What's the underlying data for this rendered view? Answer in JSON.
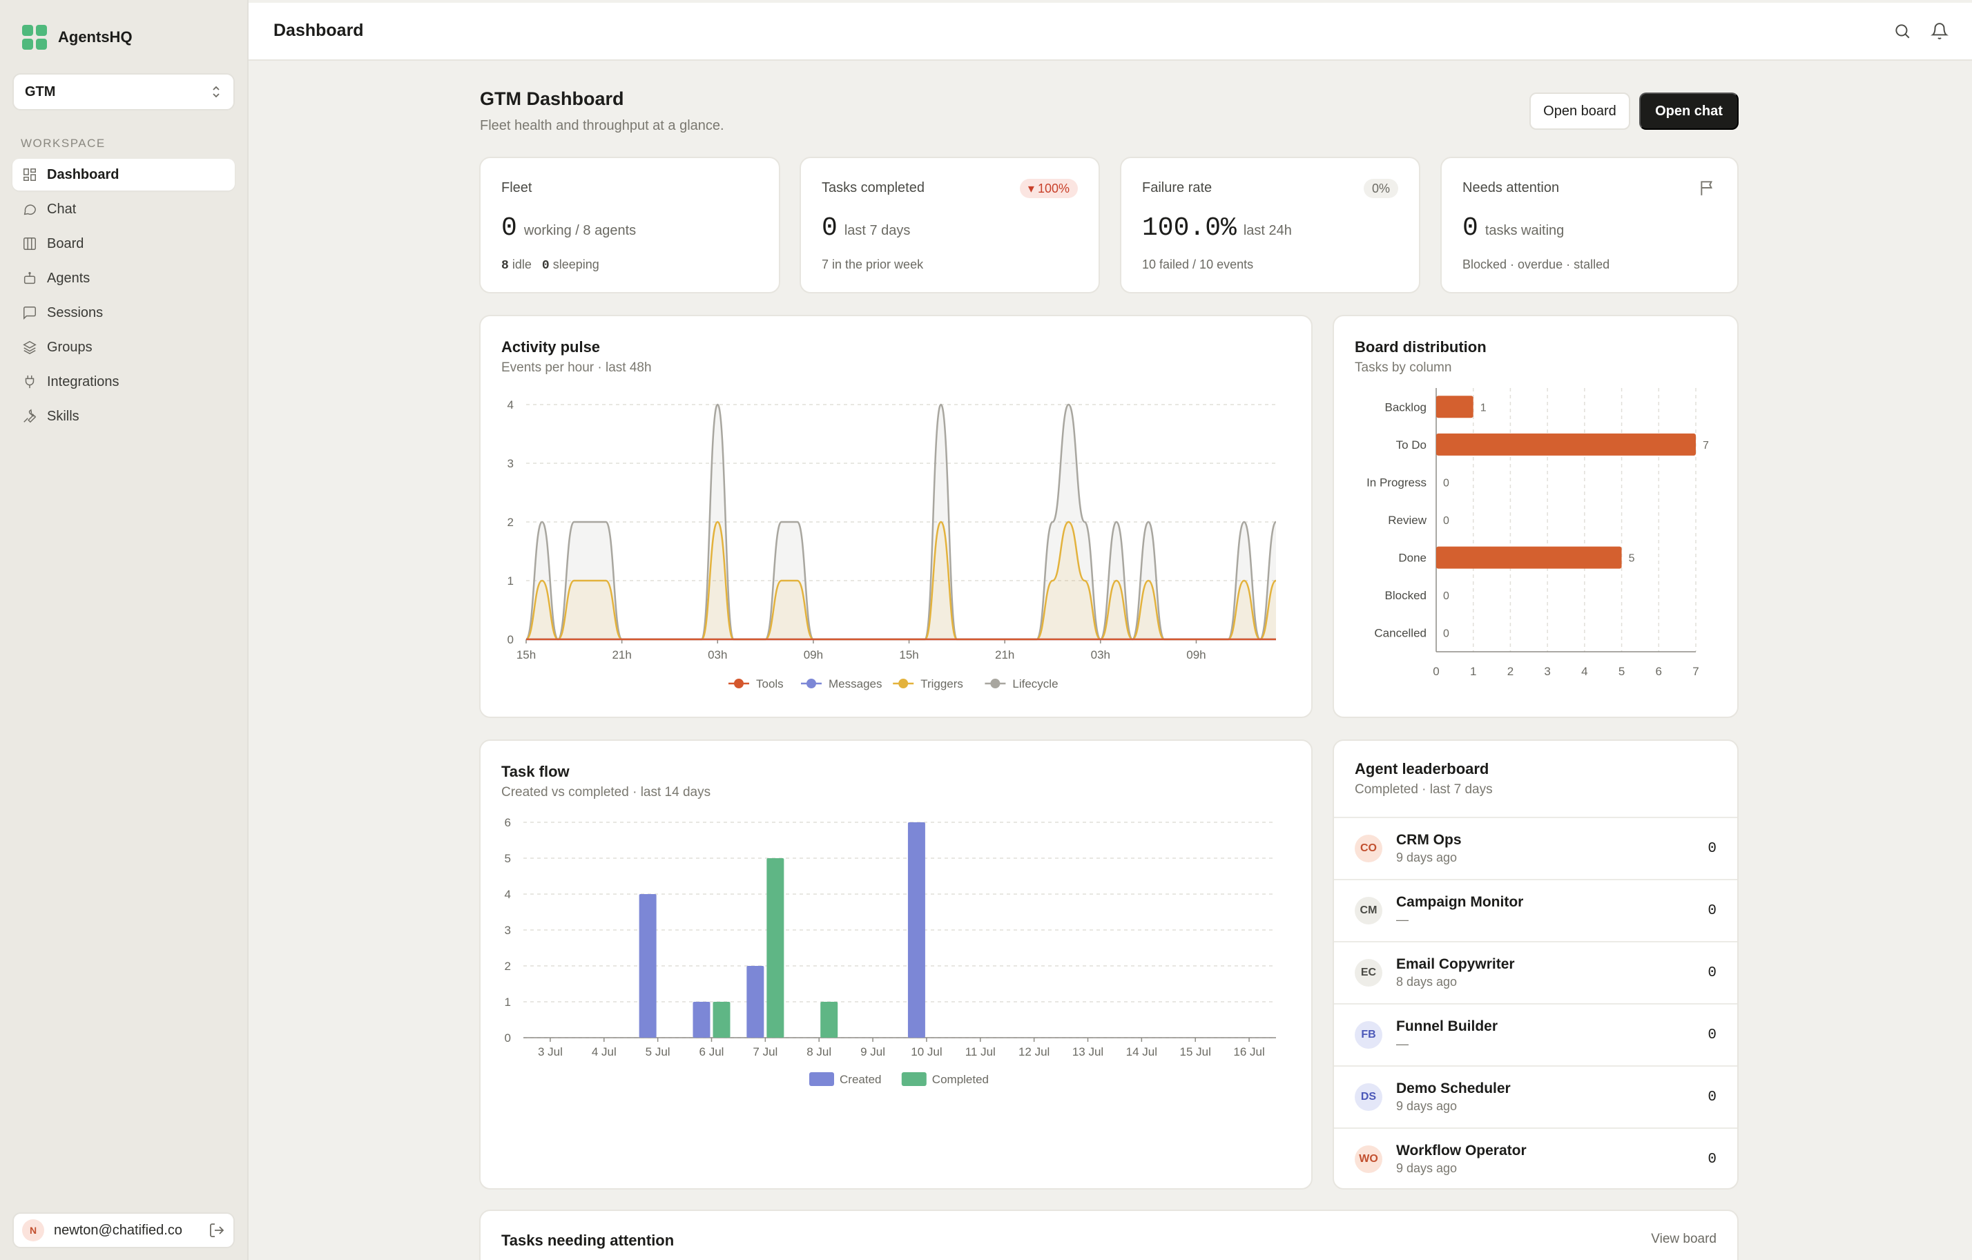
{
  "app": {
    "name": "AgentsHQ"
  },
  "workspace_selector": {
    "value": "GTM"
  },
  "sidebar": {
    "section_label": "WORKSPACE",
    "items": [
      {
        "label": "Dashboard",
        "icon": "dashboard-icon",
        "active": true
      },
      {
        "label": "Chat",
        "icon": "chat-icon"
      },
      {
        "label": "Board",
        "icon": "board-icon"
      },
      {
        "label": "Agents",
        "icon": "robot-icon"
      },
      {
        "label": "Sessions",
        "icon": "message-square-icon"
      },
      {
        "label": "Groups",
        "icon": "layers-icon"
      },
      {
        "label": "Integrations",
        "icon": "plug-icon"
      },
      {
        "label": "Skills",
        "icon": "wrench-icon"
      }
    ],
    "user": {
      "initial": "N",
      "email": "newton@chatified.co"
    }
  },
  "header": {
    "title": "Dashboard"
  },
  "page": {
    "title": "GTM Dashboard",
    "subtitle": "Fleet health and throughput at a glance.",
    "open_board": "Open board",
    "open_chat": "Open chat"
  },
  "stats": {
    "fleet": {
      "label": "Fleet",
      "value": "0",
      "unit": "working / 8 agents",
      "idle": "8",
      "idle_label": "idle",
      "sleeping": "0",
      "sleeping_label": "sleeping"
    },
    "tasks": {
      "label": "Tasks completed",
      "badge": "▾ 100%",
      "value": "0",
      "unit": "last 7 days",
      "foot": "7 in the prior week"
    },
    "failure": {
      "label": "Failure rate",
      "badge": "0%",
      "value": "100.0%",
      "unit": "last 24h",
      "foot": "10 failed / 10 events"
    },
    "attention": {
      "label": "Needs attention",
      "value": "0",
      "unit": "tasks waiting",
      "foot": "Blocked · overdue · stalled"
    }
  },
  "colors": {
    "tools": "#d4572d",
    "messages": "#7c87d6",
    "triggers": "#e3b23c",
    "lifecycle": "#a8a69f",
    "bar": "#d4602f",
    "created": "#7c87d6",
    "completed": "#5fb685"
  },
  "activity": {
    "title": "Activity pulse",
    "subtitle": "Events per hour · last 48h",
    "chart_data": {
      "type": "area",
      "x": [
        "15h",
        "16h",
        "17h",
        "18h",
        "19h",
        "20h",
        "21h",
        "22h",
        "23h",
        "00h",
        "01h",
        "02h",
        "03h",
        "04h",
        "05h",
        "06h",
        "07h",
        "08h",
        "09h",
        "10h",
        "11h",
        "12h",
        "13h",
        "14h",
        "15h",
        "16h",
        "17h",
        "18h",
        "19h",
        "20h",
        "21h",
        "22h",
        "23h",
        "00h",
        "01h",
        "02h",
        "03h",
        "04h",
        "05h",
        "06h",
        "07h",
        "08h",
        "09h",
        "10h",
        "11h",
        "12h",
        "13h",
        "14h"
      ],
      "xticks": [
        "15h",
        "21h",
        "03h",
        "09h",
        "15h",
        "21h",
        "03h",
        "09h"
      ],
      "ylim": [
        0,
        4
      ],
      "yticks": [
        0,
        1,
        2,
        3,
        4
      ],
      "series": [
        {
          "name": "Tools",
          "values": [
            0,
            0,
            0,
            0,
            0,
            0,
            0,
            0,
            0,
            0,
            0,
            0,
            0,
            0,
            0,
            0,
            0,
            0,
            0,
            0,
            0,
            0,
            0,
            0,
            0,
            0,
            0,
            0,
            0,
            0,
            0,
            0,
            0,
            0,
            0,
            0,
            0,
            0,
            0,
            0,
            0,
            0,
            0,
            0,
            0,
            0,
            0,
            0
          ]
        },
        {
          "name": "Messages",
          "values": [
            0,
            0,
            0,
            0,
            0,
            0,
            0,
            0,
            0,
            0,
            0,
            0,
            0,
            0,
            0,
            0,
            0,
            0,
            0,
            0,
            0,
            0,
            0,
            0,
            0,
            0,
            0,
            0,
            0,
            0,
            0,
            0,
            0,
            0,
            0,
            0,
            0,
            0,
            0,
            0,
            0,
            0,
            0,
            0,
            0,
            0,
            0,
            0
          ]
        },
        {
          "name": "Triggers",
          "values": [
            0,
            1,
            0,
            1,
            1,
            1,
            0,
            0,
            0,
            0,
            0,
            0,
            2,
            0,
            0,
            0,
            1,
            1,
            0,
            0,
            0,
            0,
            0,
            0,
            0,
            0,
            2,
            0,
            0,
            0,
            0,
            0,
            0,
            1,
            2,
            1,
            0,
            1,
            0,
            1,
            0,
            0,
            0,
            0,
            0,
            1,
            0,
            1
          ]
        },
        {
          "name": "Lifecycle",
          "values": [
            0,
            2,
            0,
            2,
            2,
            2,
            0,
            0,
            0,
            0,
            0,
            0,
            4,
            0,
            0,
            0,
            2,
            2,
            0,
            0,
            0,
            0,
            0,
            0,
            0,
            0,
            4,
            0,
            0,
            0,
            0,
            0,
            0,
            2,
            4,
            2,
            0,
            2,
            0,
            2,
            0,
            0,
            0,
            0,
            0,
            2,
            0,
            2
          ]
        }
      ]
    }
  },
  "board": {
    "title": "Board distribution",
    "subtitle": "Tasks by column",
    "chart_data": {
      "type": "bar",
      "orientation": "horizontal",
      "categories": [
        "Backlog",
        "To Do",
        "In Progress",
        "Review",
        "Done",
        "Blocked",
        "Cancelled"
      ],
      "values": [
        1,
        7,
        0,
        0,
        5,
        0,
        0
      ],
      "xlim": [
        0,
        7
      ],
      "xticks": [
        0,
        1,
        2,
        3,
        4,
        5,
        6,
        7
      ]
    }
  },
  "taskflow": {
    "title": "Task flow",
    "subtitle": "Created vs completed · last 14 days",
    "chart_data": {
      "type": "bar",
      "categories": [
        "3 Jul",
        "4 Jul",
        "5 Jul",
        "6 Jul",
        "7 Jul",
        "8 Jul",
        "9 Jul",
        "10 Jul",
        "11 Jul",
        "12 Jul",
        "13 Jul",
        "14 Jul",
        "15 Jul",
        "16 Jul"
      ],
      "ylim": [
        0,
        6
      ],
      "yticks": [
        0,
        1,
        2,
        3,
        4,
        5,
        6
      ],
      "series": [
        {
          "name": "Created",
          "values": [
            0,
            0,
            4,
            1,
            2,
            0,
            0,
            6,
            0,
            0,
            0,
            0,
            0,
            0
          ]
        },
        {
          "name": "Completed",
          "values": [
            0,
            0,
            0,
            1,
            5,
            1,
            0,
            0,
            0,
            0,
            0,
            0,
            0,
            0
          ]
        }
      ]
    }
  },
  "leaderboard": {
    "title": "Agent leaderboard",
    "subtitle": "Completed · last 7 days",
    "rows": [
      {
        "initials": "CO",
        "name": "CRM Ops",
        "time": "9 days ago",
        "score": "0",
        "bg": "#fbe3d8",
        "fg": "#c2502f"
      },
      {
        "initials": "CM",
        "name": "Campaign Monitor",
        "time": "—",
        "score": "0",
        "bg": "#eeede8",
        "fg": "#4a4a45"
      },
      {
        "initials": "EC",
        "name": "Email Copywriter",
        "time": "8 days ago",
        "score": "0",
        "bg": "#eeede8",
        "fg": "#4a4a45"
      },
      {
        "initials": "FB",
        "name": "Funnel Builder",
        "time": "—",
        "score": "0",
        "bg": "#e4e7f8",
        "fg": "#4b58b8"
      },
      {
        "initials": "DS",
        "name": "Demo Scheduler",
        "time": "9 days ago",
        "score": "0",
        "bg": "#e4e7f8",
        "fg": "#4b58b8"
      },
      {
        "initials": "WO",
        "name": "Workflow Operator",
        "time": "9 days ago",
        "score": "0",
        "bg": "#fbe3d8",
        "fg": "#c2502f"
      }
    ]
  },
  "attention_tasks": {
    "title": "Tasks needing attention",
    "view": "View board"
  }
}
